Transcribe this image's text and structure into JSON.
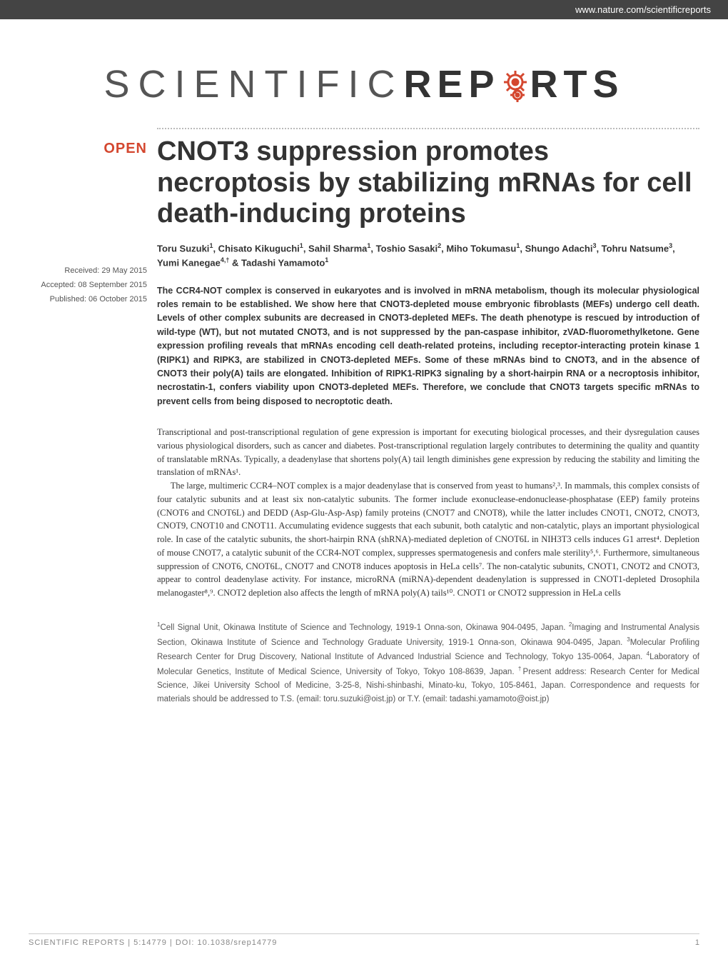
{
  "header": {
    "url": "www.nature.com/scientificreports"
  },
  "journal": {
    "logo_part1": "SCIENTIFIC ",
    "logo_part2_a": "REP",
    "logo_part2_b": "RTS",
    "gear_color": "#d4472f"
  },
  "badges": {
    "open": "OPEN"
  },
  "meta": {
    "received": "Received: 29 May 2015",
    "accepted": "Accepted: 08 September 2015",
    "published": "Published: 06 October 2015"
  },
  "article": {
    "title": "CNOT3 suppression promotes necroptosis by stabilizing mRNAs for cell death-inducing proteins",
    "authors_html": "Toru Suzuki<sup>1</sup>, Chisato Kikuguchi<sup>1</sup>, Sahil Sharma<sup>1</sup>, Toshio Sasaki<sup>2</sup>, Miho Tokumasu<sup>1</sup>, Shungo Adachi<sup>3</sup>, Tohru Natsume<sup>3</sup>, Yumi Kanegae<sup>4,†</sup> & Tadashi Yamamoto<sup>1</sup>",
    "abstract": "The CCR4-NOT complex is conserved in eukaryotes and is involved in mRNA metabolism, though its molecular physiological roles remain to be established. We show here that CNOT3-depleted mouse embryonic fibroblasts (MEFs) undergo cell death. Levels of other complex subunits are decreased in CNOT3-depleted MEFs. The death phenotype is rescued by introduction of wild-type (WT), but not mutated CNOT3, and is not suppressed by the pan-caspase inhibitor, zVAD-fluoromethylketone. Gene expression profiling reveals that mRNAs encoding cell death-related proteins, including receptor-interacting protein kinase 1 (RIPK1) and RIPK3, are stabilized in CNOT3-depleted MEFs. Some of these mRNAs bind to CNOT3, and in the absence of CNOT3 their poly(A) tails are elongated. Inhibition of RIPK1-RIPK3 signaling by a short-hairpin RNA or a necroptosis inhibitor, necrostatin-1, confers viability upon CNOT3-depleted MEFs. Therefore, we conclude that CNOT3 targets specific mRNAs to prevent cells from being disposed to necroptotic death.",
    "body_p1": "Transcriptional and post-transcriptional regulation of gene expression is important for executing biological processes, and their dysregulation causes various physiological disorders, such as cancer and diabetes. Post-transcriptional regulation largely contributes to determining the quality and quantity of translatable mRNAs. Typically, a deadenylase that shortens poly(A) tail length diminishes gene expression by reducing the stability and limiting the translation of mRNAs¹.",
    "body_p2": "The large, multimeric CCR4–NOT complex is a major deadenylase that is conserved from yeast to humans²,³. In mammals, this complex consists of four catalytic subunits and at least six non-catalytic subunits. The former include exonuclease-endonuclease-phosphatase (EEP) family proteins (CNOT6 and CNOT6L) and DEDD (Asp-Glu-Asp-Asp) family proteins (CNOT7 and CNOT8), while the latter includes CNOT1, CNOT2, CNOT3, CNOT9, CNOT10 and CNOT11. Accumulating evidence suggests that each subunit, both catalytic and non-catalytic, plays an important physiological role. In case of the catalytic subunits, the short-hairpin RNA (shRNA)-mediated depletion of CNOT6L in NIH3T3 cells induces G1 arrest⁴. Depletion of mouse CNOT7, a catalytic subunit of the CCR4-NOT complex, suppresses spermatogenesis and confers male sterility⁵,⁶. Furthermore, simultaneous suppression of CNOT6, CNOT6L, CNOT7 and CNOT8 induces apoptosis in HeLa cells⁷. The non-catalytic subunits, CNOT1, CNOT2 and CNOT3, appear to control deadenylase activity. For instance, microRNA (miRNA)-dependent deadenylation is suppressed in CNOT1-depleted Drosophila melanogaster⁸,⁹. CNOT2 depletion also affects the length of mRNA poly(A) tails¹⁰. CNOT1 or CNOT2 suppression in HeLa cells",
    "affiliations_html": "<sup>1</sup>Cell Signal Unit, Okinawa Institute of Science and Technology, 1919-1 Onna-son, Okinawa 904-0495, Japan. <sup>2</sup>Imaging and Instrumental Analysis Section, Okinawa Institute of Science and Technology Graduate University, 1919-1 Onna-son, Okinawa 904-0495, Japan. <sup>3</sup>Molecular Profiling Research Center for Drug Discovery, National Institute of Advanced Industrial Science and Technology, Tokyo 135-0064, Japan. <sup>4</sup>Laboratory of Molecular Genetics, Institute of Medical Science, University of Tokyo, Tokyo 108-8639, Japan. <sup>†</sup>Present address: Research Center for Medical Science, Jikei University School of Medicine, 3-25-8, Nishi-shinbashi, Minato-ku, Tokyo, 105-8461, Japan. Correspondence and requests for materials should be addressed to T.S. (email: toru.suzuki@oist.jp) or T.Y. (email: tadashi.yamamoto@oist.jp)"
  },
  "footer": {
    "citation": "SCIENTIFIC REPORTS | 5:14779 | DOI: 10.1038/srep14779",
    "page": "1"
  },
  "style": {
    "accent_color": "#d4472f",
    "text_color": "#333333",
    "meta_color": "#555555",
    "footer_color": "#888888",
    "background": "#ffffff",
    "title_fontsize": 38,
    "body_fontsize": 12.5,
    "abstract_fontsize": 12.5,
    "meta_fontsize": 11
  }
}
